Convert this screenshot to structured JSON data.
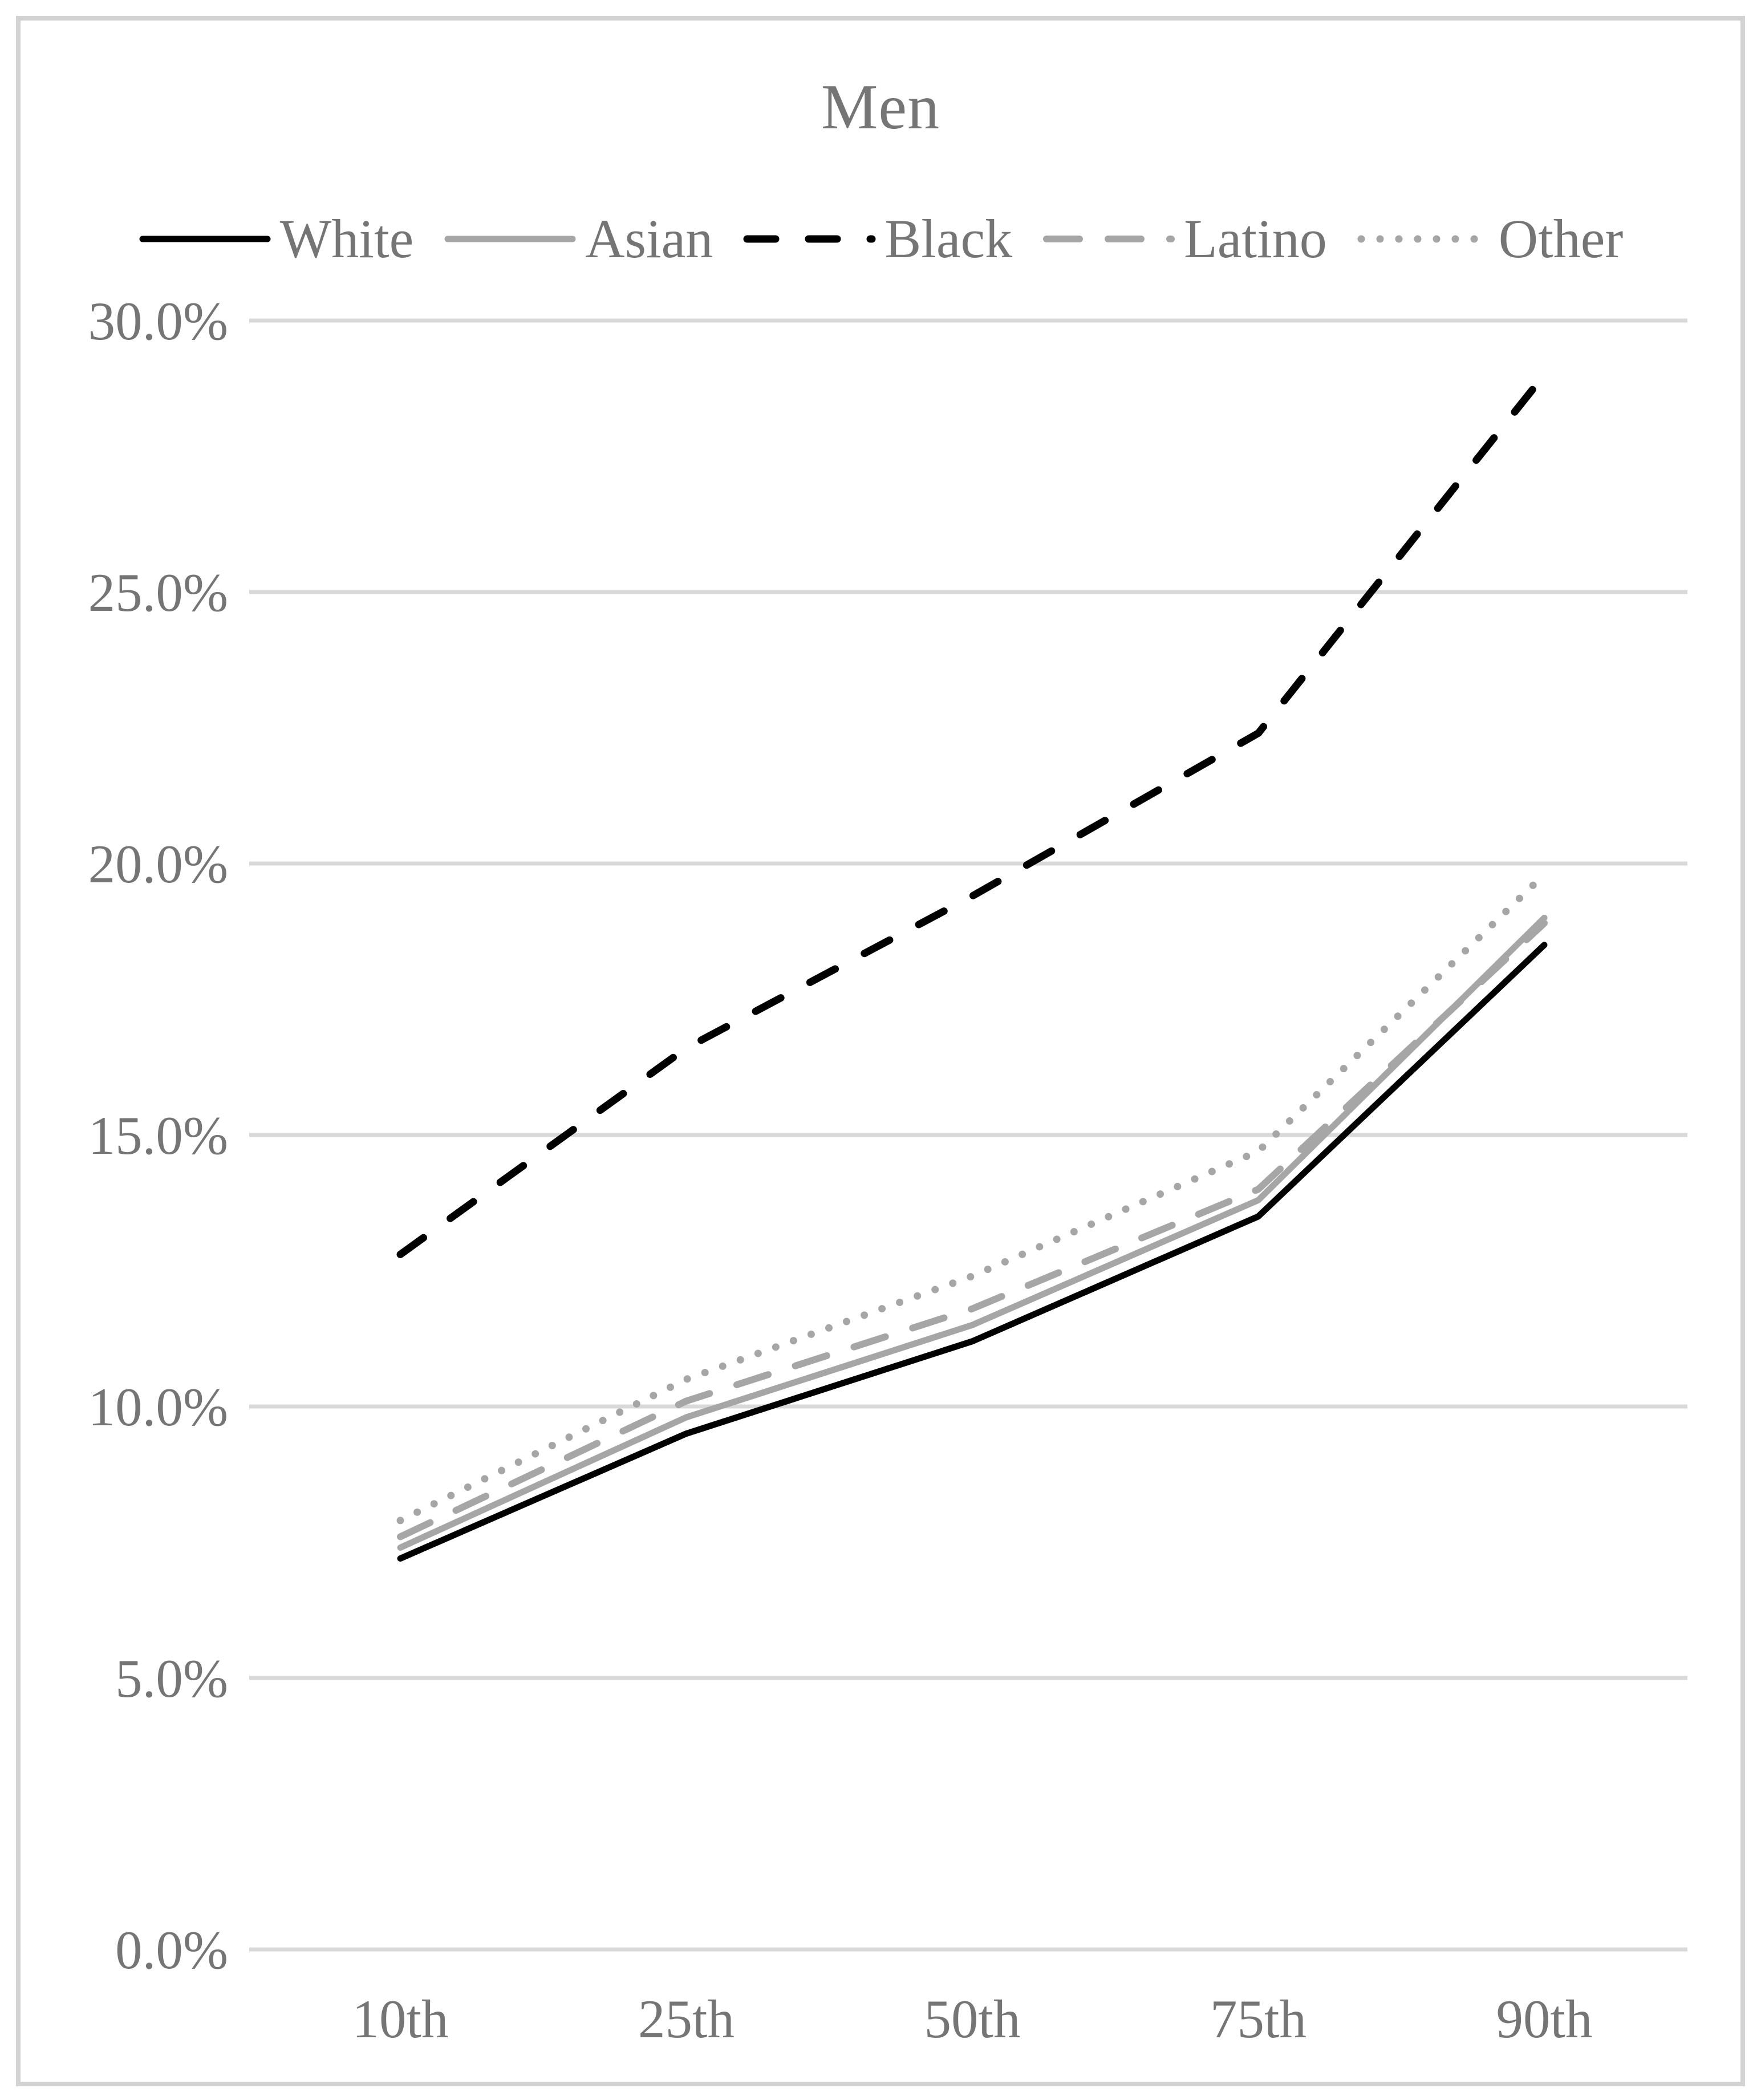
{
  "chart_data": {
    "type": "line",
    "title": "Men",
    "categories": [
      "10th",
      "25th",
      "50th",
      "75th",
      "90th"
    ],
    "yticks": [
      "30.0%",
      "25.0%",
      "20.0%",
      "15.0%",
      "10.0%",
      "5.0%",
      "0.0%"
    ],
    "ylim": [
      0,
      30
    ],
    "ytick_step": 5,
    "grid": "horizontal",
    "legend_position": "top",
    "gridline_color": "#d9d9d9",
    "label_color": "#757575",
    "series": [
      {
        "name": "White",
        "color": "#000000",
        "line_style": "solid",
        "width": 11,
        "dash": "",
        "values": [
          7.2,
          9.5,
          11.2,
          13.5,
          18.5
        ]
      },
      {
        "name": "Asian",
        "color": "#a6a6a6",
        "line_style": "solid",
        "width": 11,
        "dash": "",
        "values": [
          7.4,
          9.8,
          11.5,
          13.8,
          19.0
        ]
      },
      {
        "name": "Black",
        "color": "#000000",
        "line_style": "dashed",
        "width": 13,
        "dash": "50 58",
        "values": [
          12.8,
          16.6,
          19.4,
          22.4,
          29.0
        ]
      },
      {
        "name": "Latino",
        "color": "#a6a6a6",
        "line_style": "dashed",
        "width": 12,
        "dash": "58 50",
        "values": [
          7.6,
          10.1,
          11.8,
          14.0,
          18.9
        ]
      },
      {
        "name": "Other",
        "color": "#a6a6a6",
        "line_style": "dotted",
        "width": 13,
        "dash": "0 33",
        "values": [
          7.9,
          10.5,
          12.4,
          14.7,
          19.8
        ]
      }
    ]
  }
}
